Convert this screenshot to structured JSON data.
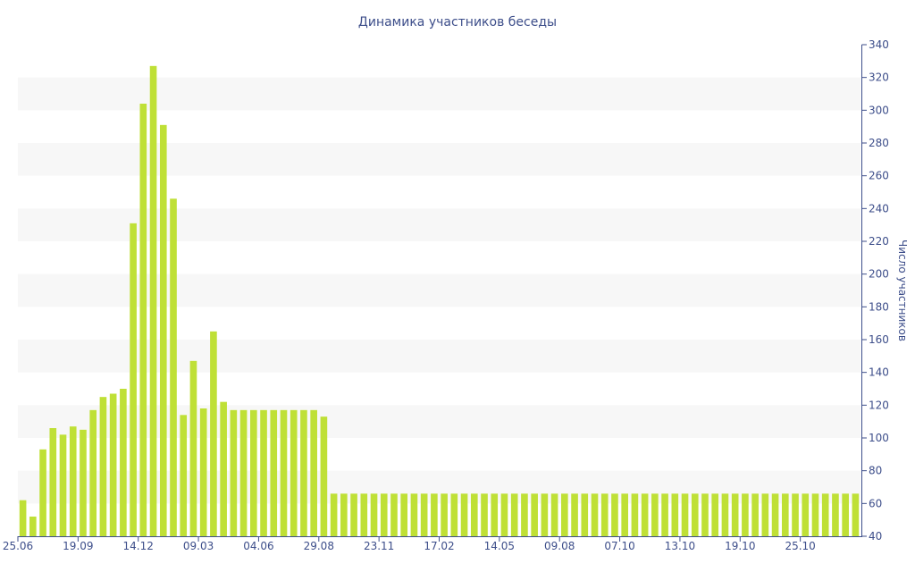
{
  "chart_data": {
    "type": "bar",
    "title": "Динамика участников беседы",
    "xlabel": "",
    "ylabel": "Число участников",
    "ylim": [
      40,
      340
    ],
    "yticks": [
      40,
      60,
      80,
      100,
      120,
      140,
      160,
      180,
      200,
      220,
      240,
      260,
      280,
      300,
      320,
      340
    ],
    "y_axis_side": "right",
    "grid": "alternating horizontal bands",
    "x_tick_labels": [
      {
        "index": 0,
        "label": "25.06"
      },
      {
        "index": 6,
        "label": "19.09"
      },
      {
        "index": 12,
        "label": "14.12"
      },
      {
        "index": 18,
        "label": "09.03"
      },
      {
        "index": 24,
        "label": "04.06"
      },
      {
        "index": 30,
        "label": "29.08"
      },
      {
        "index": 36,
        "label": "23.11"
      },
      {
        "index": 42,
        "label": "17.02"
      },
      {
        "index": 48,
        "label": "14.05"
      },
      {
        "index": 54,
        "label": "09.08"
      },
      {
        "index": 60,
        "label": "07.10"
      },
      {
        "index": 66,
        "label": "13.10"
      },
      {
        "index": 72,
        "label": "19.10"
      },
      {
        "index": 78,
        "label": "25.10"
      }
    ],
    "values": [
      62,
      52,
      93,
      106,
      102,
      107,
      105,
      117,
      125,
      127,
      130,
      231,
      304,
      327,
      291,
      246,
      114,
      147,
      118,
      165,
      122,
      117,
      117,
      117,
      117,
      117,
      117,
      117,
      117,
      117,
      113,
      66,
      66,
      66,
      66,
      66,
      66,
      66,
      66,
      66,
      66,
      66,
      66,
      66,
      66,
      66,
      66,
      66,
      66,
      66,
      66,
      66,
      66,
      66,
      66,
      66,
      66,
      66,
      66,
      66,
      66,
      66,
      66,
      66,
      66,
      66,
      66,
      66,
      66,
      66,
      66,
      66,
      66,
      66,
      66,
      66,
      66,
      66,
      66,
      66,
      66,
      66,
      66,
      66
    ],
    "colors": {
      "bar": "#bfe036",
      "text": "#3d4e8a",
      "axis": "#3d4e8a",
      "band": "#f7f7f7"
    }
  }
}
